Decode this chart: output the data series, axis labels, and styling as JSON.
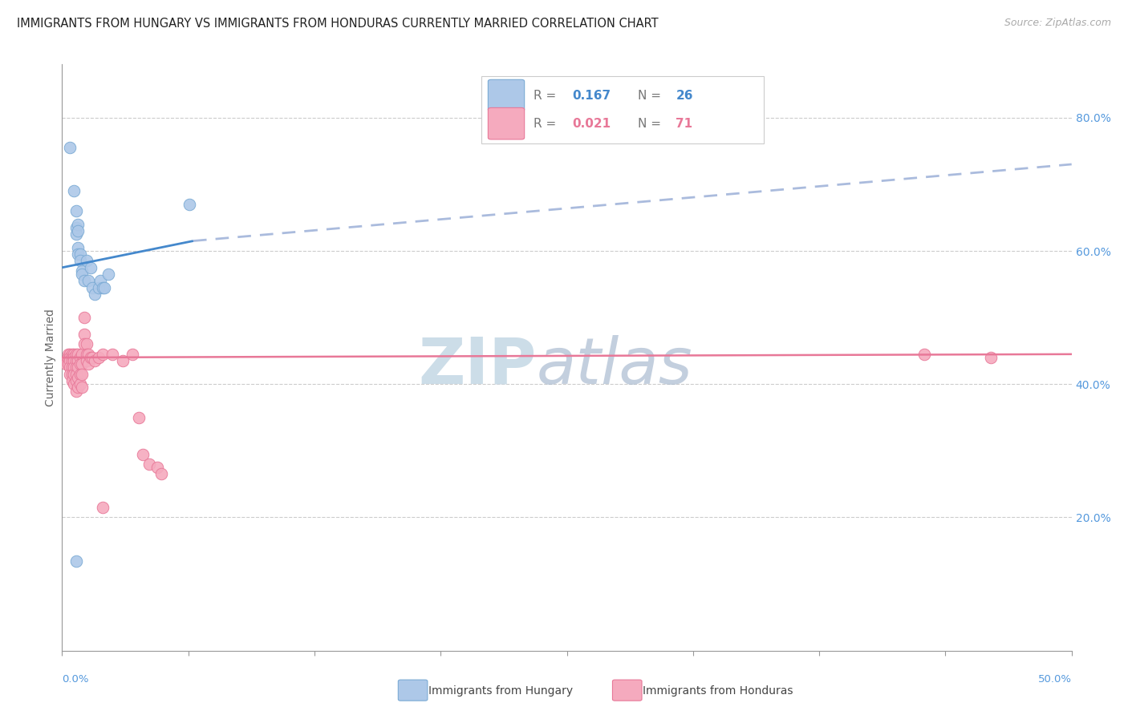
{
  "title": "IMMIGRANTS FROM HUNGARY VS IMMIGRANTS FROM HONDURAS CURRENTLY MARRIED CORRELATION CHART",
  "source": "Source: ZipAtlas.com",
  "ylabel": "Currently Married",
  "right_yticks": [
    "80.0%",
    "60.0%",
    "40.0%",
    "20.0%"
  ],
  "right_ytick_vals": [
    0.8,
    0.6,
    0.4,
    0.2
  ],
  "xlim": [
    0.0,
    0.5
  ],
  "ylim": [
    0.0,
    0.88
  ],
  "hungary_color": "#adc8e8",
  "honduras_color": "#f5aabe",
  "hungary_edge_color": "#7aaad4",
  "honduras_edge_color": "#e87898",
  "hungary_line_color": "#4488cc",
  "honduras_line_color": "#e87898",
  "hungary_dash_color": "#aabbdd",
  "axis_label_color": "#5599dd",
  "watermark_zip_color": "#ccdde8",
  "watermark_atlas_color": "#aabbd0",
  "hungary_scatter": [
    [
      0.004,
      0.755
    ],
    [
      0.006,
      0.69
    ],
    [
      0.007,
      0.66
    ],
    [
      0.007,
      0.635
    ],
    [
      0.007,
      0.625
    ],
    [
      0.008,
      0.64
    ],
    [
      0.008,
      0.63
    ],
    [
      0.008,
      0.605
    ],
    [
      0.008,
      0.595
    ],
    [
      0.009,
      0.595
    ],
    [
      0.009,
      0.585
    ],
    [
      0.01,
      0.57
    ],
    [
      0.01,
      0.565
    ],
    [
      0.011,
      0.555
    ],
    [
      0.012,
      0.585
    ],
    [
      0.013,
      0.555
    ],
    [
      0.014,
      0.575
    ],
    [
      0.015,
      0.545
    ],
    [
      0.016,
      0.535
    ],
    [
      0.018,
      0.545
    ],
    [
      0.019,
      0.555
    ],
    [
      0.02,
      0.545
    ],
    [
      0.021,
      0.545
    ],
    [
      0.023,
      0.565
    ],
    [
      0.063,
      0.67
    ],
    [
      0.007,
      0.135
    ]
  ],
  "honduras_scatter": [
    [
      0.002,
      0.435
    ],
    [
      0.002,
      0.43
    ],
    [
      0.003,
      0.445
    ],
    [
      0.003,
      0.44
    ],
    [
      0.003,
      0.435
    ],
    [
      0.003,
      0.43
    ],
    [
      0.004,
      0.445
    ],
    [
      0.004,
      0.44
    ],
    [
      0.004,
      0.435
    ],
    [
      0.004,
      0.425
    ],
    [
      0.004,
      0.415
    ],
    [
      0.005,
      0.445
    ],
    [
      0.005,
      0.44
    ],
    [
      0.005,
      0.435
    ],
    [
      0.005,
      0.425
    ],
    [
      0.005,
      0.415
    ],
    [
      0.005,
      0.405
    ],
    [
      0.006,
      0.445
    ],
    [
      0.006,
      0.44
    ],
    [
      0.006,
      0.435
    ],
    [
      0.006,
      0.425
    ],
    [
      0.006,
      0.415
    ],
    [
      0.006,
      0.4
    ],
    [
      0.007,
      0.445
    ],
    [
      0.007,
      0.435
    ],
    [
      0.007,
      0.425
    ],
    [
      0.007,
      0.415
    ],
    [
      0.007,
      0.405
    ],
    [
      0.007,
      0.39
    ],
    [
      0.008,
      0.445
    ],
    [
      0.008,
      0.435
    ],
    [
      0.008,
      0.425
    ],
    [
      0.008,
      0.41
    ],
    [
      0.008,
      0.395
    ],
    [
      0.009,
      0.44
    ],
    [
      0.009,
      0.43
    ],
    [
      0.009,
      0.415
    ],
    [
      0.009,
      0.4
    ],
    [
      0.01,
      0.445
    ],
    [
      0.01,
      0.43
    ],
    [
      0.01,
      0.415
    ],
    [
      0.01,
      0.395
    ],
    [
      0.011,
      0.5
    ],
    [
      0.011,
      0.475
    ],
    [
      0.011,
      0.46
    ],
    [
      0.012,
      0.46
    ],
    [
      0.012,
      0.445
    ],
    [
      0.012,
      0.435
    ],
    [
      0.013,
      0.445
    ],
    [
      0.013,
      0.43
    ],
    [
      0.014,
      0.44
    ],
    [
      0.015,
      0.44
    ],
    [
      0.016,
      0.435
    ],
    [
      0.018,
      0.44
    ],
    [
      0.02,
      0.445
    ],
    [
      0.025,
      0.445
    ],
    [
      0.03,
      0.435
    ],
    [
      0.035,
      0.445
    ],
    [
      0.038,
      0.35
    ],
    [
      0.04,
      0.295
    ],
    [
      0.043,
      0.28
    ],
    [
      0.047,
      0.275
    ],
    [
      0.049,
      0.265
    ],
    [
      0.02,
      0.215
    ],
    [
      0.427,
      0.445
    ],
    [
      0.46,
      0.44
    ]
  ],
  "hungary_solid_line": [
    [
      0.0,
      0.575
    ],
    [
      0.065,
      0.615
    ]
  ],
  "hungary_dashed_line": [
    [
      0.065,
      0.615
    ],
    [
      0.5,
      0.73
    ]
  ],
  "honduras_line": [
    [
      0.0,
      0.44
    ],
    [
      0.5,
      0.445
    ]
  ],
  "x_tick_positions": [
    0.0,
    0.0625,
    0.125,
    0.1875,
    0.25,
    0.3125,
    0.375,
    0.4375,
    0.5
  ],
  "legend_r1_val": "0.167",
  "legend_n1_val": "26",
  "legend_r2_val": "0.021",
  "legend_n2_val": "71"
}
